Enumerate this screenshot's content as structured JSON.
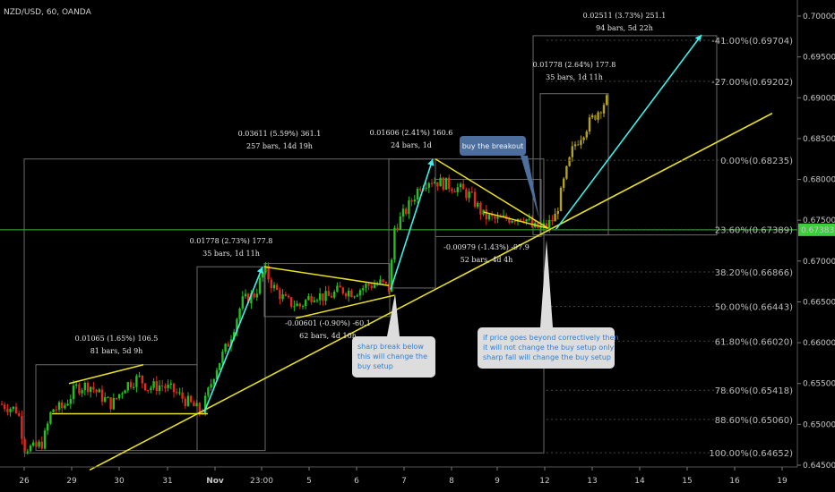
{
  "chart_data": {
    "type": "candlestick",
    "title": "NZD/USD, 60, OANDA",
    "current_price_label": "0.67383",
    "current_price": 0.67383,
    "y_range": [
      0.6443,
      0.7008
    ],
    "y_ticks": [
      "0.70000",
      "0.69500",
      "0.69000",
      "0.68500",
      "0.68000",
      "0.67500",
      "0.67000",
      "0.66500",
      "0.66000",
      "0.65500",
      "0.65000",
      "0.64500"
    ],
    "y_tick_values": [
      0.7,
      0.695,
      0.69,
      0.685,
      0.68,
      0.675,
      0.67,
      0.665,
      0.66,
      0.655,
      0.65,
      0.645
    ],
    "x_ticks": [
      "26",
      "29",
      "30",
      "31",
      "Nov",
      "23:00",
      "5",
      "6",
      "7",
      "8",
      "9",
      "12",
      "13",
      "14",
      "15",
      "16",
      "19"
    ],
    "fib_levels": [
      {
        "label": "-41.00%(0.69704)",
        "value": 0.69704
      },
      {
        "label": "-27.00%(0.69202)",
        "value": 0.69202
      },
      {
        "label": "0.00%(0.68235)",
        "value": 0.68235
      },
      {
        "label": "23.60%(0.67389)",
        "value": 0.67389
      },
      {
        "label": "38.20%(0.66866)",
        "value": 0.66866
      },
      {
        "label": "50.00%(0.66443)",
        "value": 0.66443
      },
      {
        "label": "61.80%(0.66020)",
        "value": 0.6602
      },
      {
        "label": "78.60%(0.65418)",
        "value": 0.65418
      },
      {
        "label": "88.60%(0.65060)",
        "value": 0.6506
      },
      {
        "label": "100.00%(0.64652)",
        "value": 0.64652
      }
    ],
    "measurements": [
      {
        "line1": "0.01065 (1.65%) 106.5",
        "line2": "81 bars, 5d 9h"
      },
      {
        "line1": "0.01778 (2.73%) 177.8",
        "line2": "35 bars, 1d 11h"
      },
      {
        "line1": "0.03611 (5.59%) 361.1",
        "line2": "257 bars, 14d 19h"
      },
      {
        "line1": "-0.00601 (-0.90%) -60.1",
        "line2": "62 bars, 4d 10h"
      },
      {
        "line1": "0.01606 (2.41%) 160.6",
        "line2": "24 bars, 1d"
      },
      {
        "line1": "-0.00979 (-1.43%) -97.9",
        "line2": "52 bars, 4d 4h"
      },
      {
        "line1": "0.01778 (2.64%) 177.8",
        "line2": "35 bars, 1d 11h"
      },
      {
        "line1": "0.02511 (3.73%) 251.1",
        "line2": "94 bars, 5d 22h"
      }
    ],
    "annotations": [
      {
        "text": "buy the breakout"
      },
      {
        "line1": "sharp break below",
        "line2": "this will change the",
        "line3": "buy setup"
      },
      {
        "line1": "if price goes beyond correctively then",
        "line2": "it will not change the buy setup only",
        "line3": "sharp fall will change the buy setup"
      }
    ]
  }
}
